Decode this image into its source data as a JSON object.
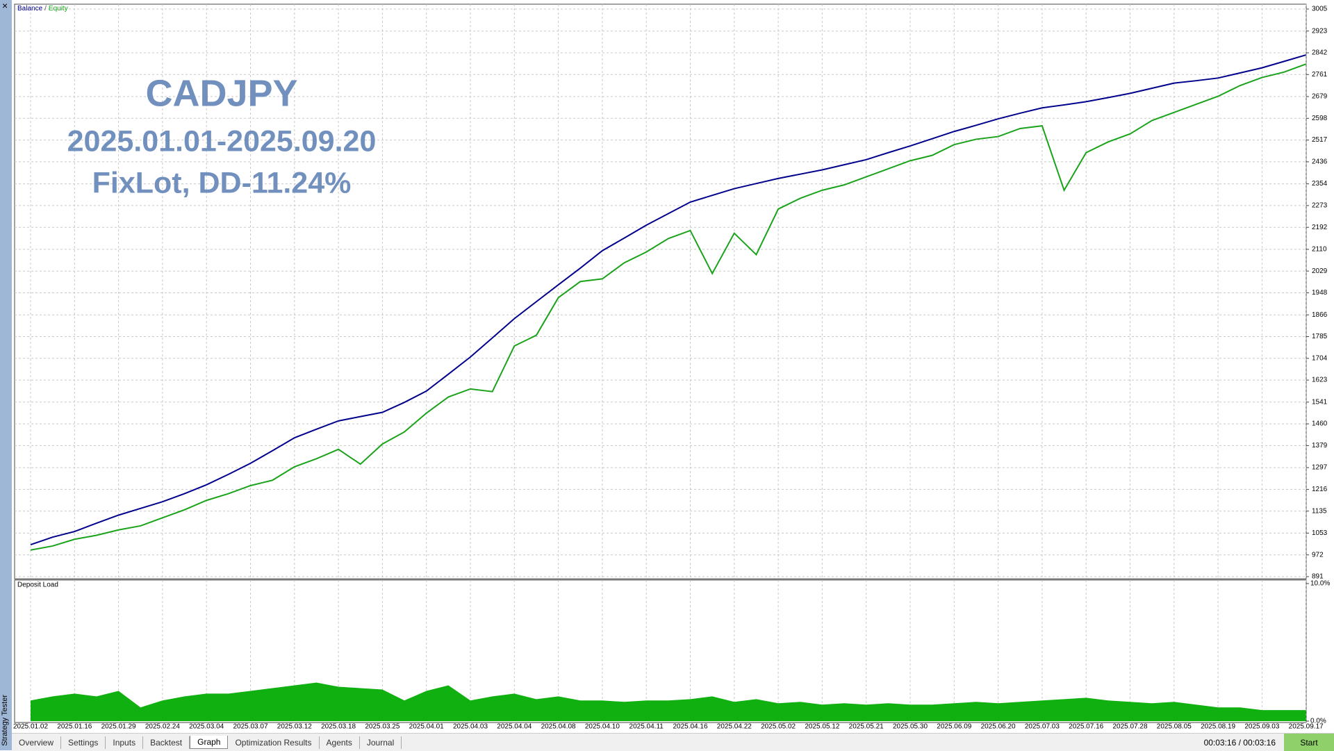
{
  "chart_data": [
    {
      "type": "line",
      "annotations": [
        "CADJPY",
        "2025.01.01-2025.09.20",
        "FixLot, DD-11.24%"
      ],
      "legend_separator": "/",
      "categories": [
        "2025.01.02",
        null,
        "2025.01.16",
        null,
        "2025.01.29",
        null,
        "2025.02.24",
        null,
        "2025.03.04",
        null,
        "2025.03.07",
        null,
        "2025.03.12",
        null,
        "2025.03.18",
        null,
        "2025.03.25",
        null,
        "2025.04.01",
        null,
        "2025.04.03",
        null,
        "2025.04.04",
        null,
        "2025.04.08",
        null,
        "2025.04.10",
        null,
        "2025.04.11",
        null,
        "2025.04.16",
        null,
        "2025.04.22",
        null,
        "2025.05.02",
        null,
        "2025.05.12",
        null,
        "2025.05.21",
        null,
        "2025.05.30",
        null,
        "2025.06.09",
        null,
        "2025.06.20",
        null,
        "2025.07.03",
        null,
        "2025.07.16",
        null,
        "2025.07.28",
        null,
        "2025.08.05",
        null,
        "2025.08.19",
        null,
        "2025.09.03",
        null,
        "2025.09.17"
      ],
      "series": [
        {
          "name": "Balance",
          "color": "#00008c",
          "values": [
            1010,
            1038,
            1059,
            1090,
            1120,
            1145,
            1170,
            1200,
            1233,
            1272,
            1313,
            1360,
            1408,
            1440,
            1471,
            1487,
            1503,
            1540,
            1582,
            1645,
            1709,
            1780,
            1852,
            1915,
            1978,
            2040,
            2105,
            2152,
            2200,
            2243,
            2286,
            2311,
            2336,
            2355,
            2374,
            2390,
            2406,
            2425,
            2444,
            2470,
            2495,
            2522,
            2549,
            2572,
            2596,
            2617,
            2637,
            2648,
            2660,
            2675,
            2691,
            2710,
            2729,
            2738,
            2748,
            2767,
            2786,
            2810,
            2834
          ]
        },
        {
          "name": "Equity",
          "color": "#1aa31a",
          "values": [
            990,
            1005,
            1030,
            1045,
            1065,
            1080,
            1110,
            1140,
            1175,
            1200,
            1230,
            1250,
            1300,
            1330,
            1365,
            1310,
            1385,
            1430,
            1500,
            1560,
            1590,
            1580,
            1750,
            1790,
            1930,
            1990,
            2000,
            2060,
            2100,
            2150,
            2180,
            2020,
            2170,
            2090,
            2260,
            2300,
            2330,
            2350,
            2380,
            2410,
            2440,
            2460,
            2500,
            2520,
            2530,
            2560,
            2570,
            2330,
            2470,
            2510,
            2540,
            2590,
            2620,
            2650,
            2680,
            2720,
            2750,
            2770,
            2800
          ]
        }
      ],
      "ylim": [
        891,
        3005
      ],
      "yticks": [
        891,
        972,
        1053,
        1135,
        1216,
        1297,
        1379,
        1460,
        1541,
        1623,
        1704,
        1785,
        1866,
        1948,
        2029,
        2110,
        2192,
        2273,
        2354,
        2436,
        2517,
        2598,
        2679,
        2761,
        2842,
        2923,
        3005
      ],
      "grid": true
    },
    {
      "type": "area",
      "title": "Deposit Load",
      "color": "#10b010",
      "values": [
        1.5,
        1.8,
        2.0,
        1.8,
        2.2,
        1.0,
        1.5,
        1.8,
        2.0,
        2.0,
        2.2,
        2.4,
        2.6,
        2.8,
        2.5,
        2.4,
        2.3,
        1.5,
        2.2,
        2.6,
        1.5,
        1.8,
        2.0,
        1.6,
        1.8,
        1.5,
        1.5,
        1.4,
        1.5,
        1.5,
        1.6,
        1.8,
        1.4,
        1.6,
        1.3,
        1.4,
        1.2,
        1.3,
        1.2,
        1.3,
        1.2,
        1.2,
        1.3,
        1.4,
        1.3,
        1.4,
        1.5,
        1.6,
        1.7,
        1.5,
        1.4,
        1.3,
        1.4,
        1.2,
        1.0,
        1.0,
        0.8,
        0.8,
        0.8
      ],
      "ylim": [
        0,
        10
      ],
      "yticks": [
        {
          "value": 0,
          "label": "0.0%"
        },
        {
          "value": 10,
          "label": "10.0%"
        }
      ]
    }
  ],
  "sidebar": {
    "title": "Strategy Tester",
    "close": "×"
  },
  "tabs": [
    {
      "label": "Overview"
    },
    {
      "label": "Settings"
    },
    {
      "label": "Inputs"
    },
    {
      "label": "Backtest"
    },
    {
      "label": "Graph",
      "selected": true
    },
    {
      "label": "Optimization Results"
    },
    {
      "label": "Agents"
    },
    {
      "label": "Journal"
    }
  ],
  "status": {
    "time": "00:03:16 / 00:03:16",
    "button": "Start"
  }
}
